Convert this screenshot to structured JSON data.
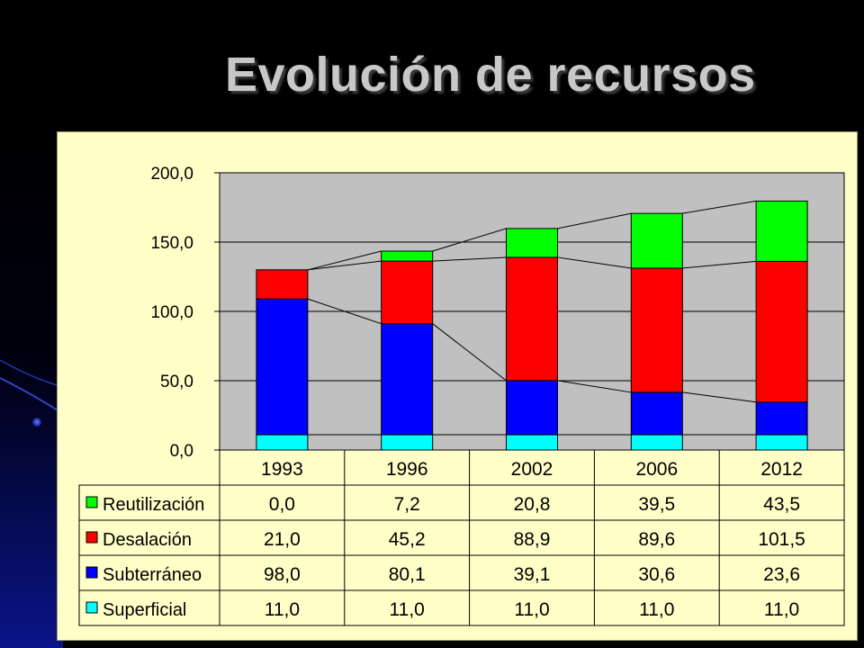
{
  "title": "Evolución de recursos",
  "chart_data": {
    "type": "bar",
    "stacked": true,
    "categories": [
      "1993",
      "1996",
      "2002",
      "2006",
      "2012"
    ],
    "series": [
      {
        "name": "Superficial",
        "color": "#00ffff",
        "values": [
          "11,0",
          "11,0",
          "11,0",
          "11,0",
          "11,0"
        ]
      },
      {
        "name": "Subterráneo",
        "color": "#0000ff",
        "values": [
          "98,0",
          "80,1",
          "39,1",
          "30,6",
          "23,6"
        ]
      },
      {
        "name": "Desalación",
        "color": "#ff0000",
        "values": [
          "21,0",
          "45,2",
          "88,9",
          "89,6",
          "101,5"
        ]
      },
      {
        "name": "Reutilización",
        "color": "#00ff00",
        "values": [
          "0,0",
          "7,2",
          "20,8",
          "39,5",
          "43,5"
        ]
      }
    ],
    "table_row_order": [
      "Reutilización",
      "Desalación",
      "Subterráneo",
      "Superficial"
    ],
    "y_ticks": [
      "0,0",
      "50,0",
      "100,0",
      "150,0",
      "200,0"
    ],
    "ylim": [
      0,
      200
    ],
    "plot_background": "#c0c0c0",
    "chart_background": "#ffffc8",
    "series_lines": true,
    "data_table": true,
    "grid": "horizontal"
  }
}
